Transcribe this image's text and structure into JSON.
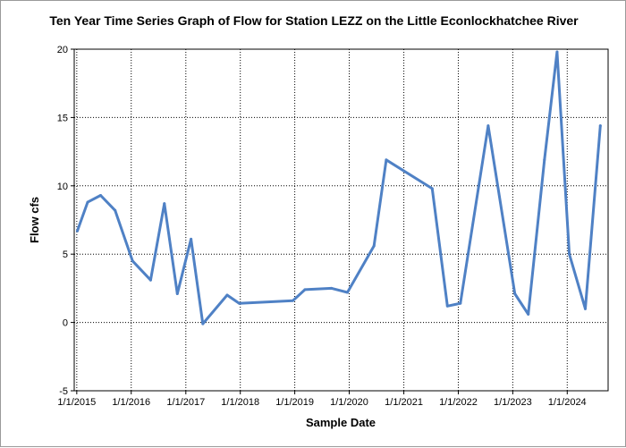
{
  "chart_data": {
    "type": "line",
    "title": "Ten Year Time Series Graph of Flow for Station LEZZ on the Little Econlockhatchee River",
    "xlabel": "Sample Date",
    "ylabel": "Flow cfs",
    "xlim": [
      "2014-12-15",
      "2024-10-01"
    ],
    "ylim": [
      -5,
      20
    ],
    "x_ticks": [
      "2015-01-01",
      "2016-01-01",
      "2017-01-01",
      "2018-01-01",
      "2019-01-01",
      "2020-01-01",
      "2021-01-01",
      "2022-01-01",
      "2023-01-01",
      "2024-01-01"
    ],
    "x_tick_labels": [
      "1/1/2015",
      "1/1/2016",
      "1/1/2017",
      "1/1/2018",
      "1/1/2019",
      "1/1/2020",
      "1/1/2021",
      "1/1/2022",
      "1/1/2023",
      "1/1/2024"
    ],
    "y_ticks": [
      -5,
      0,
      5,
      10,
      15,
      20
    ],
    "y_tick_labels": [
      "-5",
      "0",
      "5",
      "10",
      "15",
      "20"
    ],
    "grid": true,
    "grid_style": "dotted",
    "line_color": "#4f81c5",
    "series": [
      {
        "points": [
          {
            "x": "2015-01-05",
            "y": 6.7
          },
          {
            "x": "2015-03-15",
            "y": 8.8
          },
          {
            "x": "2015-06-10",
            "y": 9.3
          },
          {
            "x": "2015-09-15",
            "y": 8.2
          },
          {
            "x": "2016-01-10",
            "y": 4.5
          },
          {
            "x": "2016-05-10",
            "y": 3.1
          },
          {
            "x": "2016-08-10",
            "y": 8.7
          },
          {
            "x": "2016-11-05",
            "y": 2.1
          },
          {
            "x": "2017-02-05",
            "y": 6.1
          },
          {
            "x": "2017-04-25",
            "y": -0.1
          },
          {
            "x": "2017-10-05",
            "y": 2.0
          },
          {
            "x": "2017-12-25",
            "y": 1.4
          },
          {
            "x": "2018-12-20",
            "y": 1.6
          },
          {
            "x": "2019-03-10",
            "y": 2.4
          },
          {
            "x": "2019-09-05",
            "y": 2.5
          },
          {
            "x": "2019-12-20",
            "y": 2.2
          },
          {
            "x": "2020-06-15",
            "y": 5.6
          },
          {
            "x": "2020-09-05",
            "y": 11.9
          },
          {
            "x": "2021-07-10",
            "y": 9.8
          },
          {
            "x": "2021-10-20",
            "y": 1.2
          },
          {
            "x": "2022-01-15",
            "y": 1.4
          },
          {
            "x": "2022-07-20",
            "y": 14.4
          },
          {
            "x": "2023-01-15",
            "y": 2.1
          },
          {
            "x": "2023-04-15",
            "y": 0.6
          },
          {
            "x": "2023-08-01",
            "y": 11.9
          },
          {
            "x": "2023-10-25",
            "y": 19.8
          },
          {
            "x": "2024-01-15",
            "y": 5.0
          },
          {
            "x": "2024-05-01",
            "y": 1.0
          },
          {
            "x": "2024-08-10",
            "y": 14.4
          }
        ]
      }
    ]
  }
}
